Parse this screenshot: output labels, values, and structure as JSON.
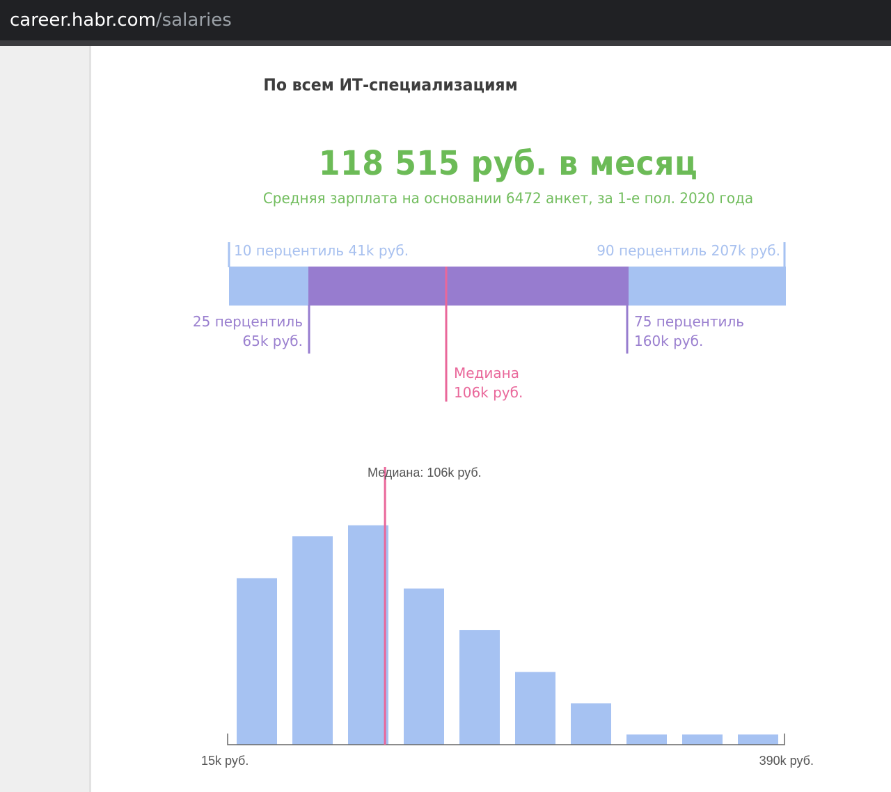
{
  "browser": {
    "url_host": "career.habr.com",
    "url_path": "/salaries"
  },
  "section_title": "По всем ИТ-специализациям",
  "summary": {
    "average": "118 515 руб. в месяц",
    "subtitle": "Средняя зарплата на основании 6472 анкет, за 1-е пол. 2020 года"
  },
  "percentiles": {
    "p10": {
      "label": "10 перцентиль 41k руб.",
      "value": 41
    },
    "p90": {
      "label": "90 перцентиль 207k руб.",
      "value": 207
    },
    "p25": {
      "line1": "25 перцентиль",
      "line2": "65k руб.",
      "value": 65
    },
    "p75": {
      "line1": "75 перцентиль",
      "line2": "160k руб.",
      "value": 160
    },
    "median": {
      "line1": "Медиана",
      "line2": "106k руб.",
      "value": 106
    },
    "colors": {
      "outer": "#a6c2f2",
      "inner": "#977ccf",
      "median": "#e9679a"
    }
  },
  "chart_data": {
    "type": "bar",
    "x_min_label": "15k руб.",
    "x_max_label": "390k руб.",
    "x_range": [
      15,
      390
    ],
    "median": {
      "value": 106,
      "label": "Медиана: 106k руб."
    },
    "values": [
      245,
      307,
      323,
      230,
      169,
      107,
      61,
      15,
      15,
      15
    ],
    "ylim": [
      0,
      330
    ],
    "bar_color": "#a6c2f2",
    "median_color": "#e9679a",
    "grid": false
  }
}
